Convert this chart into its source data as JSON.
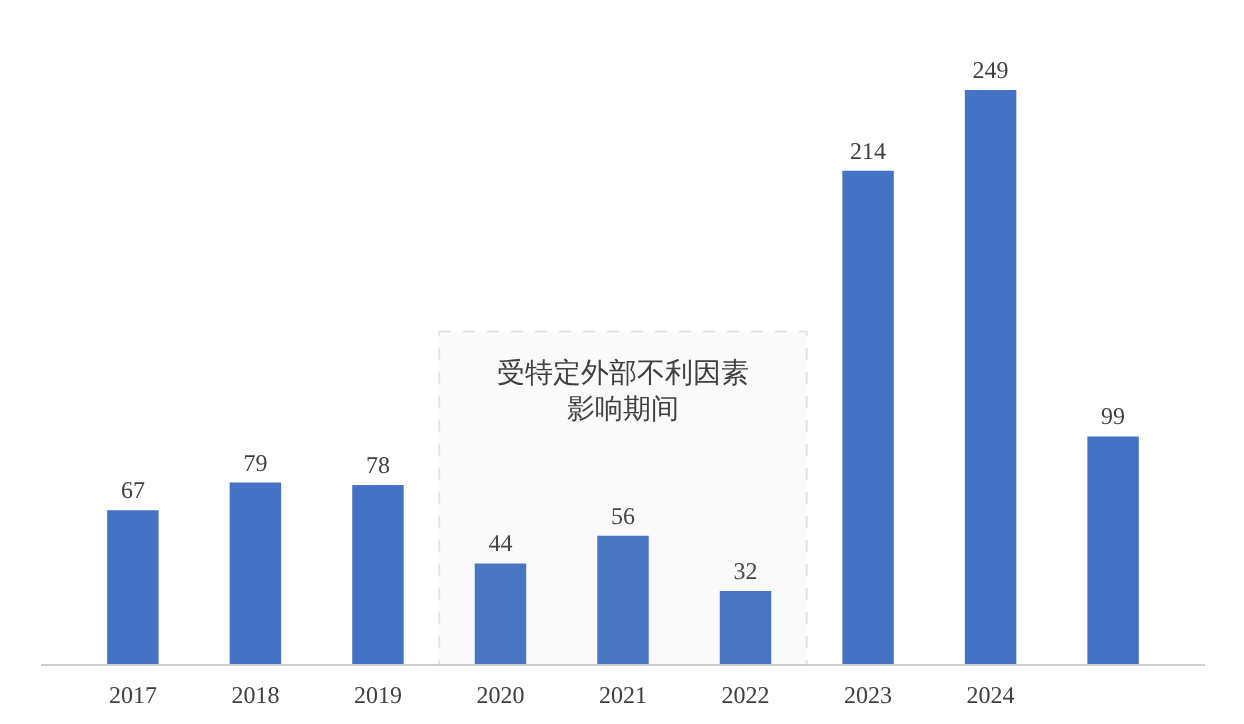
{
  "chart_data": {
    "type": "bar",
    "categories": [
      "2017",
      "2018",
      "2019",
      "2020",
      "2021",
      "2022",
      "2023",
      "2024",
      null
    ],
    "values": [
      67,
      79,
      78,
      44,
      56,
      32,
      214,
      249,
      99
    ],
    "color": "#4472c4",
    "data_labels": true,
    "grid": false,
    "bands": [
      {
        "axis": "x",
        "from": "2020",
        "to": "2022",
        "label": "受特定外部不利因素影响期间",
        "color": "#aaaaaa"
      }
    ]
  }
}
